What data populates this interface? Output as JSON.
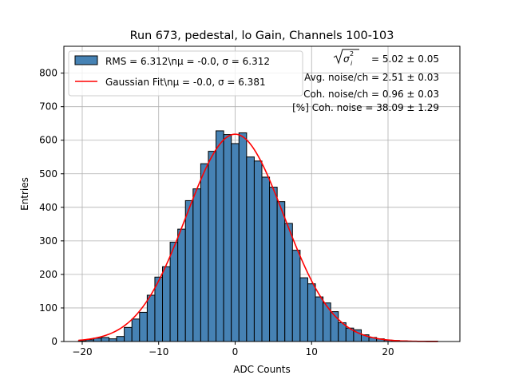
{
  "chart_data": {
    "type": "bar",
    "title": "Run 673, pedestal, lo Gain, Channels 100-103",
    "xlabel": "ADC Counts",
    "ylabel": "Entries",
    "xlim": [
      -22.4,
      29.4
    ],
    "ylim": [
      0,
      880
    ],
    "xticks": [
      -20,
      -10,
      0,
      10,
      20
    ],
    "yticks": [
      0,
      100,
      200,
      300,
      400,
      500,
      600,
      700,
      800
    ],
    "grid": true,
    "legend_position": "top-left",
    "bin_width": 1,
    "histogram": {
      "name": "RMS = 6.312\\nμ = -0.0, σ = 6.312",
      "color": "#4682b4",
      "bins": [
        {
          "x": -20,
          "y": 2
        },
        {
          "x": -19,
          "y": 5
        },
        {
          "x": -18,
          "y": 10
        },
        {
          "x": -17,
          "y": 12
        },
        {
          "x": -16,
          "y": 8
        },
        {
          "x": -15,
          "y": 15
        },
        {
          "x": -14,
          "y": 42
        },
        {
          "x": -13,
          "y": 67
        },
        {
          "x": -12,
          "y": 87
        },
        {
          "x": -11,
          "y": 138
        },
        {
          "x": -10,
          "y": 192
        },
        {
          "x": -9,
          "y": 223
        },
        {
          "x": -8,
          "y": 296
        },
        {
          "x": -7,
          "y": 335
        },
        {
          "x": -6,
          "y": 420
        },
        {
          "x": -5,
          "y": 455
        },
        {
          "x": -4,
          "y": 530
        },
        {
          "x": -3,
          "y": 567
        },
        {
          "x": -2,
          "y": 628
        },
        {
          "x": -1,
          "y": 617
        },
        {
          "x": 0,
          "y": 590
        },
        {
          "x": 1,
          "y": 622
        },
        {
          "x": 2,
          "y": 550
        },
        {
          "x": 3,
          "y": 538
        },
        {
          "x": 4,
          "y": 490
        },
        {
          "x": 5,
          "y": 460
        },
        {
          "x": 6,
          "y": 417
        },
        {
          "x": 7,
          "y": 352
        },
        {
          "x": 8,
          "y": 272
        },
        {
          "x": 9,
          "y": 190
        },
        {
          "x": 10,
          "y": 172
        },
        {
          "x": 11,
          "y": 133
        },
        {
          "x": 12,
          "y": 115
        },
        {
          "x": 13,
          "y": 89
        },
        {
          "x": 14,
          "y": 56
        },
        {
          "x": 15,
          "y": 40
        },
        {
          "x": 16,
          "y": 35
        },
        {
          "x": 17,
          "y": 20
        },
        {
          "x": 18,
          "y": 12
        },
        {
          "x": 19,
          "y": 8
        },
        {
          "x": 20,
          "y": 4
        },
        {
          "x": 21,
          "y": 3
        },
        {
          "x": 22,
          "y": 2
        },
        {
          "x": 23,
          "y": 1
        },
        {
          "x": 24,
          "y": 1
        },
        {
          "x": 25,
          "y": 1
        },
        {
          "x": 26,
          "y": 1
        }
      ]
    },
    "fit": {
      "name": "Gaussian Fit\\nμ = -0.0, σ = 6.381",
      "color": "#ff0000",
      "mu": 0.0,
      "sigma": 6.381,
      "amplitude": 618,
      "x_range": [
        -20.5,
        26.5
      ]
    },
    "annotations": {
      "sqrt_label": "σ",
      "total_noise": "= 5.02 ± 0.05",
      "avg_noise": "Avg. noise/ch = 2.51 ± 0.03",
      "coh_noise": "Coh. noise/ch = 0.96 ± 0.03",
      "coh_percent": "[%] Coh. noise = 38.09 ± 1.29"
    }
  }
}
